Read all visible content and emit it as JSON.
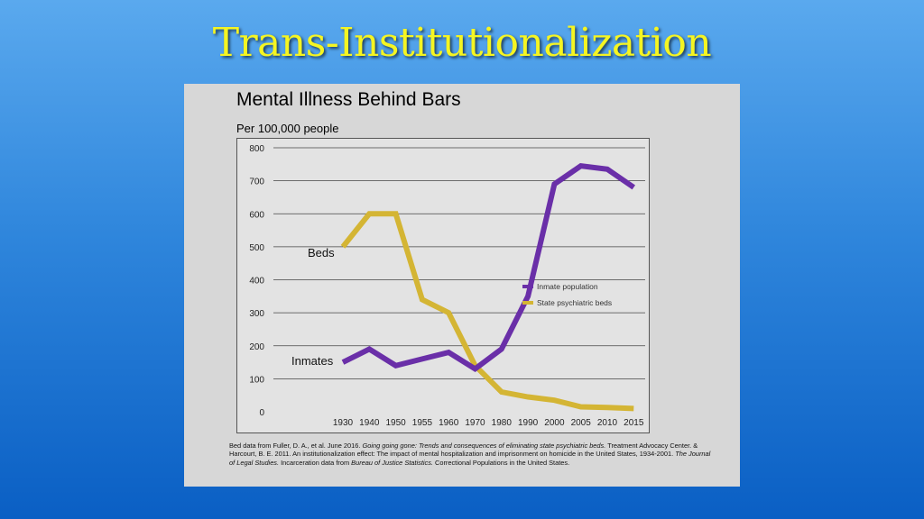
{
  "slide": {
    "title": "Trans-Institutionalization"
  },
  "chart_data": {
    "type": "line",
    "title": "Mental Illness Behind Bars",
    "subtitle": "Per 100,000 people",
    "xlabel": "",
    "ylabel": "",
    "x": [
      "1930",
      "1940",
      "1950",
      "1955",
      "1960",
      "1970",
      "1980",
      "1990",
      "2000",
      "2005",
      "2010",
      "2015"
    ],
    "ylim": [
      0,
      800
    ],
    "yticks": [
      0,
      100,
      200,
      300,
      400,
      500,
      600,
      700,
      800
    ],
    "grid": true,
    "legend_position": "right",
    "series": [
      {
        "name": "Inmate population",
        "color": "#6a2fa8",
        "values": [
          150,
          190,
          140,
          160,
          180,
          130,
          190,
          350,
          690,
          745,
          735,
          680
        ]
      },
      {
        "name": "State psychiatric beds",
        "color": "#d4b534",
        "values": [
          500,
          600,
          600,
          340,
          300,
          140,
          60,
          45,
          35,
          15,
          13,
          10
        ]
      }
    ],
    "annotations": [
      {
        "text": "Beds",
        "series": "State psychiatric beds"
      },
      {
        "text": "Inmates",
        "series": "Inmate population"
      }
    ]
  },
  "source_note": {
    "line1_a": "Bed data from Fuller, D. A., et al. June 2016. ",
    "line1_italic": "Going going gone: Trends and consequences of eliminating state psychiatric beds.",
    "line1_b": " Treatment Advocacy Center. & Harcourt, B. E. 2011. An institutionalization effect: The impact of mental hospitalization and imprisonment on homicide in the United States, 1934-2001. ",
    "line2_italic": "The Journal of Legal Studies.",
    "line2_b": " Incarceration data from ",
    "line3_italic": "Bureau of Justice Statistics.",
    "line3_b": " Correctional Populations in the United States."
  }
}
